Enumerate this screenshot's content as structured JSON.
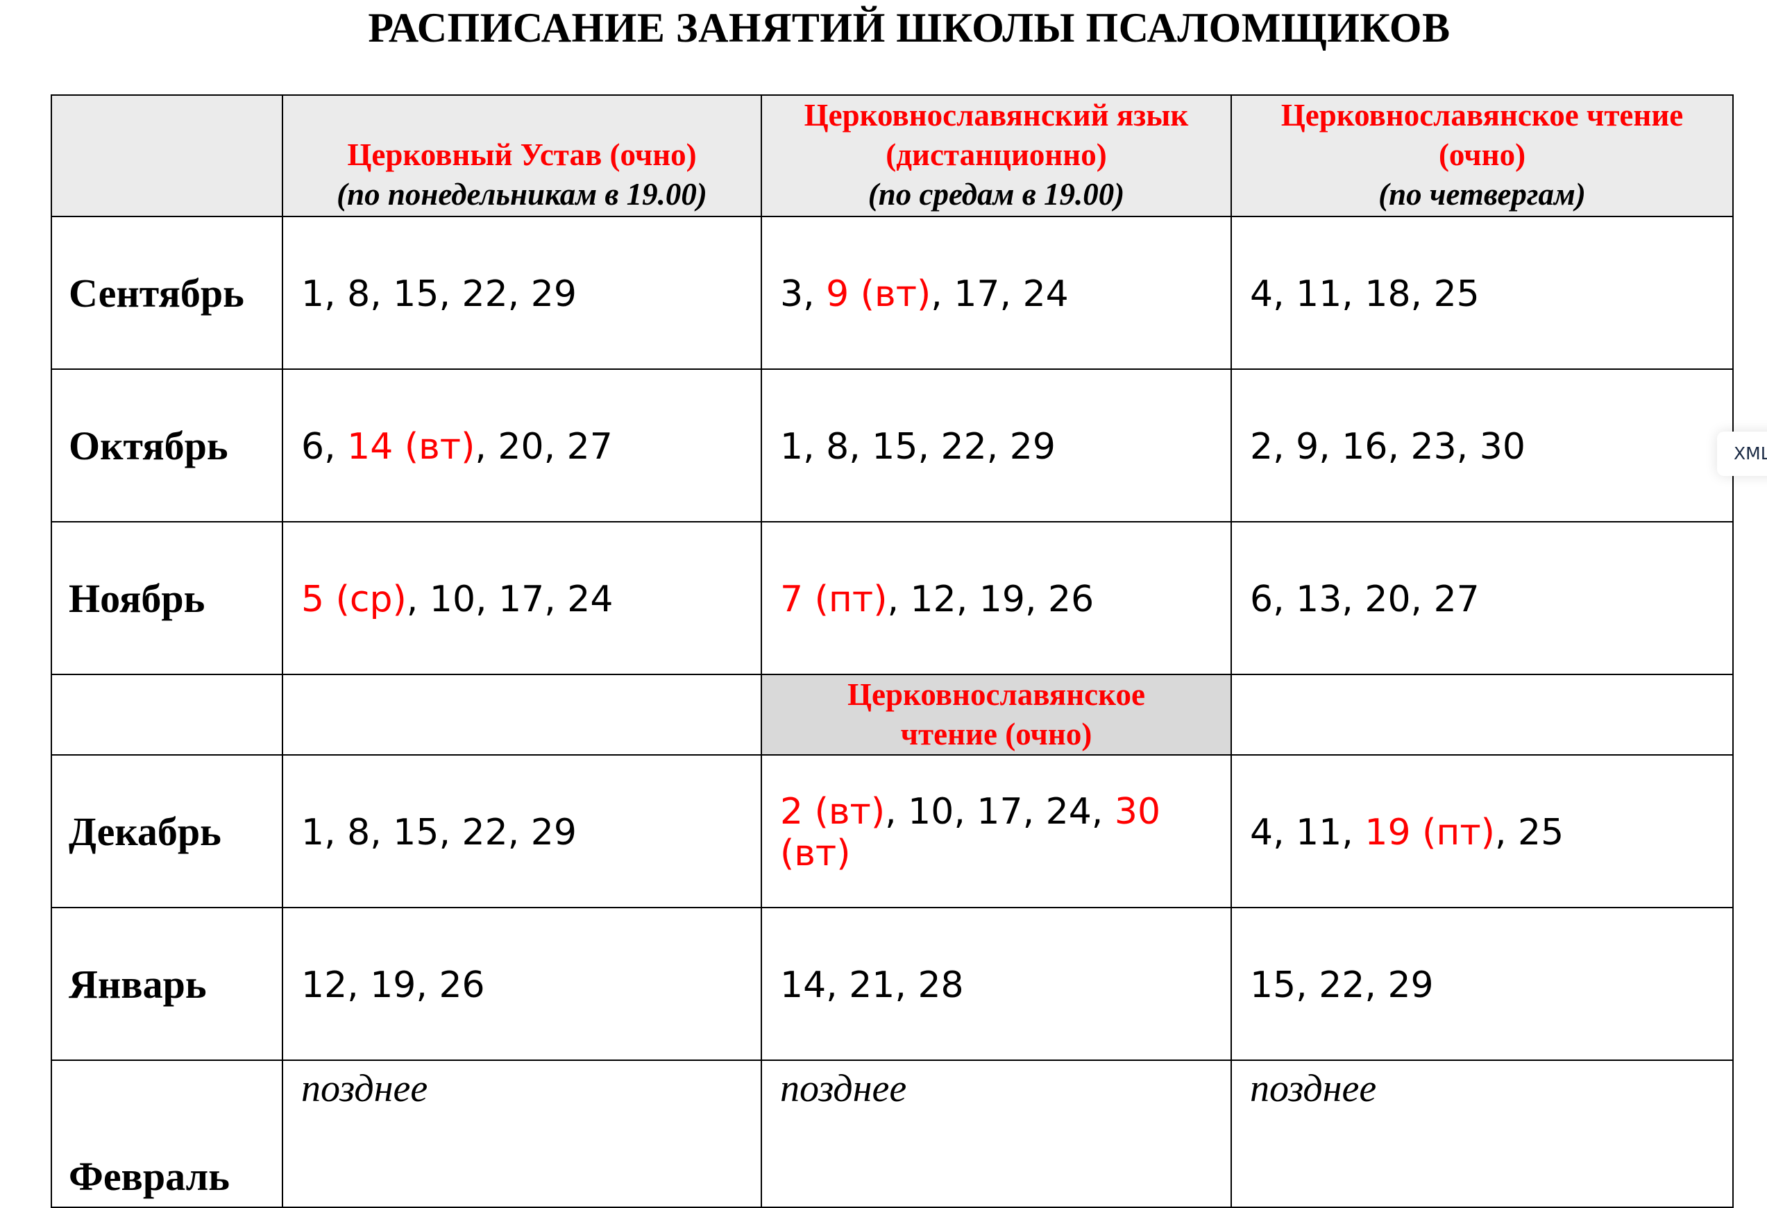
{
  "title": "РАСПИСАНИЕ ЗАНЯТИЙ ШКОЛЫ ПСАЛОМЩИКОВ",
  "columns": [
    {
      "title": "Церковный Устав (очно)",
      "subtitle": "(по понедельникам в 19.00)"
    },
    {
      "title": "Церковнославянский язык (дистанционно)",
      "subtitle": "(по средам в 19.00)"
    },
    {
      "title": "Церковнославянское чтение (очно)",
      "subtitle": "(по четвергам)"
    }
  ],
  "rows": [
    {
      "month": "Сентябрь",
      "cells": [
        [
          {
            "t": "1, 8, 15, 22, 29",
            "red": false
          }
        ],
        [
          {
            "t": "3, ",
            "red": false
          },
          {
            "t": "9 (вт)",
            "red": true
          },
          {
            "t": ", 17, 24",
            "red": false
          }
        ],
        [
          {
            "t": "4, 11, 18, 25",
            "red": false
          }
        ]
      ]
    },
    {
      "month": "Октябрь",
      "cells": [
        [
          {
            "t": "6, ",
            "red": false
          },
          {
            "t": "14 (вт)",
            "red": true
          },
          {
            "t": ", 20, 27",
            "red": false
          }
        ],
        [
          {
            "t": "1, 8, 15, 22, 29",
            "red": false
          }
        ],
        [
          {
            "t": "2, 9, 16, 23, 30",
            "red": false
          }
        ]
      ]
    },
    {
      "month": "Ноябрь",
      "cells": [
        [
          {
            "t": "5 (ср)",
            "red": true
          },
          {
            "t": ", 10, 17, 24",
            "red": false
          }
        ],
        [
          {
            "t": "7 (пт)",
            "red": true
          },
          {
            "t": ", 12, 19, 26",
            "red": false
          }
        ],
        [
          {
            "t": "6, 13, 20, 27",
            "red": false
          }
        ]
      ]
    }
  ],
  "subheader": "Церковнославянское чтение (очно)",
  "rows2": [
    {
      "month": "Декабрь",
      "cells": [
        [
          {
            "t": "1, 8, 15, 22, 29",
            "red": false
          }
        ],
        [
          {
            "t": "2 (вт)",
            "red": true
          },
          {
            "t": ", 10, 17, 24, ",
            "red": false
          },
          {
            "t": "30 (вт)",
            "red": true
          }
        ],
        [
          {
            "t": "4, 11, ",
            "red": false
          },
          {
            "t": "19 (пт)",
            "red": true
          },
          {
            "t": ", 25",
            "red": false
          }
        ]
      ]
    },
    {
      "month": "Январь",
      "cells": [
        [
          {
            "t": "12, 19, 26",
            "red": false
          }
        ],
        [
          {
            "t": "14, 21, 28",
            "red": false
          }
        ],
        [
          {
            "t": "15, 22, 29",
            "red": false
          }
        ]
      ]
    }
  ],
  "february": {
    "month": "Февраль",
    "cells": [
      "позднее",
      "позднее",
      "позднее"
    ]
  },
  "xml_tab": "XML",
  "colors": {
    "accent_red": "#ff0000",
    "header_bg": "#ebebeb",
    "subheader_bg": "#d9d9d9"
  }
}
